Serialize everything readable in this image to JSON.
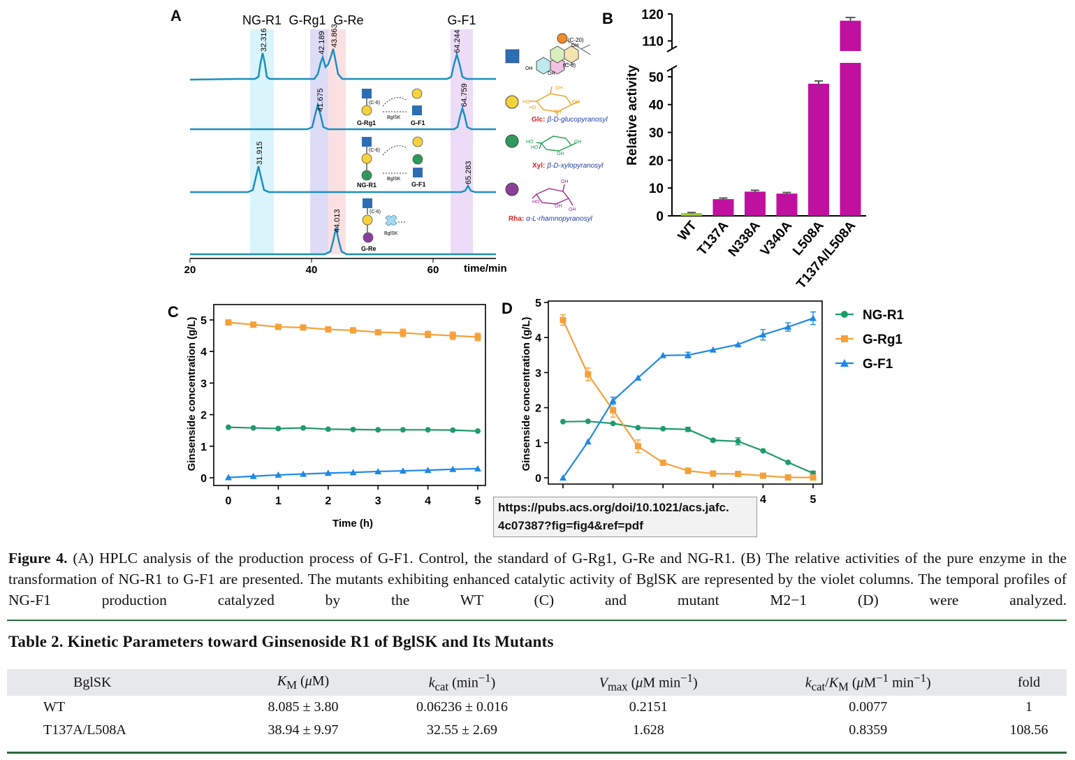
{
  "panelA": {
    "label": "A",
    "peak_labels": [
      "NG-R1",
      "G-Rg1",
      "G-Re",
      "G-F1"
    ],
    "xaxis_ticks": [
      "20",
      "40",
      "60"
    ],
    "xaxis_label": "time/min",
    "trace1_rt": [
      "32.316",
      "42.189",
      "43.863",
      "64.244"
    ],
    "trace2_rt": [
      "41.675",
      "64.759"
    ],
    "trace3_rt": [
      "31.915",
      "65.283"
    ],
    "trace4_rt": [
      "44.013"
    ],
    "scheme_grg1": {
      "sub": "G-Rg1",
      "prod": "G-F1",
      "enzyme": "BglSK",
      "link": "(C-6)"
    },
    "scheme_ngr1": {
      "sub": "NG-R1",
      "prod": "G-F1",
      "enzyme": "BglSK",
      "link": "(C-6)"
    },
    "scheme_gre": {
      "sub": "G-Re",
      "enzyme": "BglSK",
      "link": "(C-6)"
    },
    "aglycone_labels": [
      "(C-20)",
      "(C-6)",
      "OH",
      "OH",
      "OH"
    ],
    "legend_glc": {
      "abbr": "Glc:",
      "name": "β-D-glucopyranosyl",
      "color": "#f5d23d"
    },
    "legend_xyl": {
      "abbr": "Xyl:",
      "name": "β-D-xylopyranosyl",
      "color": "#2e9a5a"
    },
    "legend_rha": {
      "abbr": "Rha:",
      "name": "α-L-rhamnopyranosyl",
      "color": "#8a3f9a"
    },
    "legend_aglycone_color": "#2d6db5"
  },
  "url_tooltip": {
    "line1": "https://pubs.acs.org/doi/10.1021/acs.jafc.",
    "line2": "4c07387?fig=fig4&ref=pdf"
  },
  "chart_data": [
    {
      "id": "B",
      "type": "bar",
      "label": "B",
      "ylabel": "Relative activity",
      "categories": [
        "WT",
        "T137A",
        "N338A",
        "V340A",
        "L508A",
        "T137A/L508A"
      ],
      "values": [
        1.0,
        6.0,
        8.7,
        8.0,
        47.5,
        117.5
      ],
      "errors": [
        0.2,
        0.4,
        0.5,
        0.4,
        1.0,
        1.2
      ],
      "yticks_lower": [
        "0",
        "10",
        "20",
        "30",
        "40",
        "50"
      ],
      "yticks_upper": [
        "110",
        "120"
      ],
      "axis_break": [
        55,
        106
      ],
      "colors": [
        "#9acd32",
        "#c010a0",
        "#c010a0",
        "#c010a0",
        "#c010a0",
        "#c010a0"
      ]
    },
    {
      "id": "C",
      "type": "line",
      "label": "C",
      "xlabel": "Time (h)",
      "ylabel": "Ginsenside concentration (g/L)",
      "xlim": [
        0,
        5
      ],
      "ylim": [
        0,
        5
      ],
      "xticks": [
        "0",
        "1",
        "2",
        "3",
        "4",
        "5"
      ],
      "yticks": [
        "0",
        "1",
        "2",
        "3",
        "4",
        "5"
      ],
      "x": [
        0,
        0.5,
        1,
        1.5,
        2,
        2.5,
        3,
        3.5,
        4,
        4.5,
        5
      ],
      "series": [
        {
          "name": "NG-R1",
          "values": [
            1.6,
            1.58,
            1.56,
            1.58,
            1.54,
            1.53,
            1.52,
            1.52,
            1.52,
            1.51,
            1.48
          ],
          "errors": [
            0.02,
            0.02,
            0.02,
            0.02,
            0.02,
            0.02,
            0.02,
            0.02,
            0.02,
            0.02,
            0.03
          ]
        },
        {
          "name": "G-Rg1",
          "values": [
            4.92,
            4.85,
            4.78,
            4.76,
            4.7,
            4.67,
            4.61,
            4.59,
            4.54,
            4.5,
            4.46
          ],
          "errors": [
            0.05,
            0.05,
            0.05,
            0.05,
            0.05,
            0.06,
            0.07,
            0.12,
            0.1,
            0.12,
            0.12
          ]
        },
        {
          "name": "G-F1",
          "values": [
            0.01,
            0.05,
            0.09,
            0.12,
            0.15,
            0.17,
            0.2,
            0.22,
            0.24,
            0.27,
            0.29
          ],
          "errors": [
            0.01,
            0.01,
            0.01,
            0.01,
            0.01,
            0.01,
            0.01,
            0.01,
            0.01,
            0.01,
            0.01
          ]
        }
      ]
    },
    {
      "id": "D",
      "type": "line",
      "label": "D",
      "xlabel": "",
      "ylabel": "Ginsenside concentration (g/L)",
      "xlim": [
        0,
        5
      ],
      "ylim": [
        0,
        5
      ],
      "xticks": [
        "0",
        "1",
        "2",
        "3",
        "4",
        "5"
      ],
      "yticks": [
        "0",
        "1",
        "2",
        "3",
        "4",
        "5"
      ],
      "x": [
        0,
        0.5,
        1,
        1.5,
        2,
        2.5,
        3,
        3.5,
        4,
        4.5,
        5
      ],
      "series": [
        {
          "name": "NG-R1",
          "values": [
            1.6,
            1.61,
            1.55,
            1.43,
            1.4,
            1.38,
            1.07,
            1.04,
            0.77,
            0.44,
            0.13
          ],
          "errors": [
            0.02,
            0.02,
            0.02,
            0.02,
            0.02,
            0.06,
            0.04,
            0.1,
            0.03,
            0.03,
            0.06
          ]
        },
        {
          "name": "G-Rg1",
          "values": [
            4.5,
            2.95,
            1.93,
            0.9,
            0.43,
            0.2,
            0.12,
            0.11,
            0.06,
            0.01,
            0.01
          ],
          "errors": [
            0.15,
            0.18,
            0.2,
            0.18,
            0.05,
            0.08,
            0.05,
            0.03,
            0.02,
            0.02,
            0.02
          ]
        },
        {
          "name": "G-F1",
          "values": [
            0.0,
            1.03,
            2.2,
            2.85,
            3.49,
            3.5,
            3.65,
            3.8,
            4.08,
            4.3,
            4.55
          ],
          "errors": [
            0.01,
            0.02,
            0.1,
            0.03,
            0.03,
            0.08,
            0.03,
            0.03,
            0.15,
            0.12,
            0.18
          ]
        }
      ],
      "legend": [
        "NG-R1",
        "G-Rg1",
        "G-F1"
      ]
    }
  ],
  "series_colors": {
    "NG-R1": "#1f9a6a",
    "G-Rg1": "#f5a13a",
    "G-F1": "#1e88e5"
  },
  "caption": {
    "label": "Figure 4.",
    "text": " (A) HPLC analysis of the production process of G-F1. Control, the standard of G-Rg1, G-Re and NG-R1. (B) The relative activities of the pure enzyme in the transformation of NG-R1 to G-F1 are presented. The mutants exhibiting enhanced catalytic activity of BglSK are represented by the violet columns. The temporal profiles of NG-F1 production catalyzed by the WT (C) and mutant M2−1 (D) were analyzed."
  },
  "table": {
    "title": "Table 2. Kinetic Parameters toward Ginsenoside R1 of BglSK and Its Mutants",
    "headers": [
      "BglSK",
      "KM (μM)",
      "kcat (min−1)",
      "Vmax (μM min−1)",
      "kcat/KM (μM−1 min−1)",
      "fold"
    ],
    "rows": [
      [
        "WT",
        "8.085 ± 3.80",
        "0.06236 ± 0.016",
        "0.2151",
        "0.0077",
        "1"
      ],
      [
        "T137A/L508A",
        "38.94 ± 9.97",
        "32.55 ± 2.69",
        "1.628",
        "0.8359",
        "108.56"
      ]
    ]
  }
}
